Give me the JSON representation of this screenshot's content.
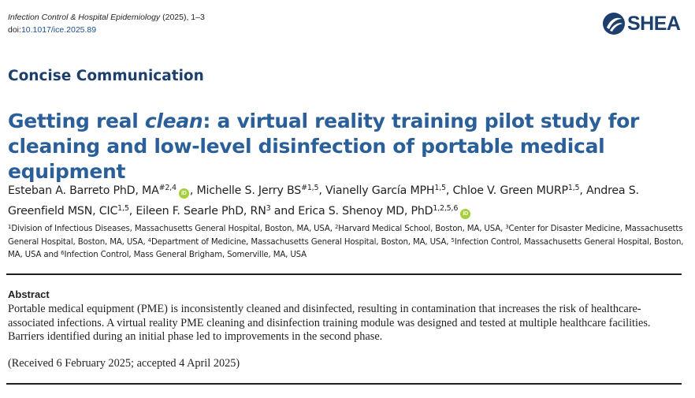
{
  "header": {
    "journal_name": "Infection Control & Hospital Epidemiology",
    "journal_year_pages": " (2025), 1–3",
    "doi_label": "doi:",
    "doi_value": "10.1017/ice.2025.89",
    "logo_text": "SHEA",
    "logo_icon": "shea-logo-icon"
  },
  "section_label": "Concise Communication",
  "title": {
    "part1": "Getting real ",
    "emphasis": "clean",
    "part2": ": a virtual reality training pilot study for cleaning and low-level disinfection of portable medical equipment"
  },
  "authors": [
    {
      "name": "Esteban A. Barreto PhD, MA",
      "sup": "#2,4",
      "orcid": true,
      "sep": ", "
    },
    {
      "name": "Michelle S. Jerry BS",
      "sup": "#1,5",
      "orcid": false,
      "sep": ", "
    },
    {
      "name": "Vianelly García MPH",
      "sup": "1,5",
      "orcid": false,
      "sep": ", "
    },
    {
      "name": "Chloe V. Green MURP",
      "sup": "1,5",
      "orcid": false,
      "sep": ", "
    },
    {
      "name": "Andrea S. Greenfield MSN, CIC",
      "sup": "1,5",
      "orcid": false,
      "sep": ", "
    },
    {
      "name": "Eileen F. Searle PhD, RN",
      "sup": "3",
      "orcid": false,
      "sep": " and "
    },
    {
      "name": "Erica S. Shenoy MD, PhD",
      "sup": "1,2,5,6",
      "orcid": true,
      "sep": ""
    }
  ],
  "affiliations": [
    {
      "num": "1",
      "text": "Division of Infectious Diseases, Massachusetts General Hospital, Boston, MA, USA, "
    },
    {
      "num": "2",
      "text": "Harvard Medical School, Boston, MA, USA, "
    },
    {
      "num": "3",
      "text": "Center for Disaster Medicine, Massachusetts General Hospital, Boston, MA, USA, "
    },
    {
      "num": "4",
      "text": "Department of Medicine, Massachusetts General Hospital, Boston, MA, USA, "
    },
    {
      "num": "5",
      "text": "Infection Control, Massachusetts General Hospital, Boston, MA, USA and "
    },
    {
      "num": "6",
      "text": "Infection Control, Mass General Brigham, Somerville, MA, USA"
    }
  ],
  "abstract": {
    "heading": "Abstract",
    "body": "Portable medical equipment (PME) is inconsistently cleaned and disinfected, resulting in contamination that increases the risk of healthcare-associated infections. A virtual reality PME cleaning and disinfection training module was designed and tested at multiple healthcare facilities. Barriers identified during an initial phase led to improvements in the second phase.",
    "received": "(Received 6 February 2025; accepted 4 April 2025)"
  },
  "colors": {
    "title_blue": "#2b5f99",
    "section_navy": "#1c3f6e",
    "orcid_green": "#a6ce39",
    "doi_link": "#1a4f8a"
  }
}
